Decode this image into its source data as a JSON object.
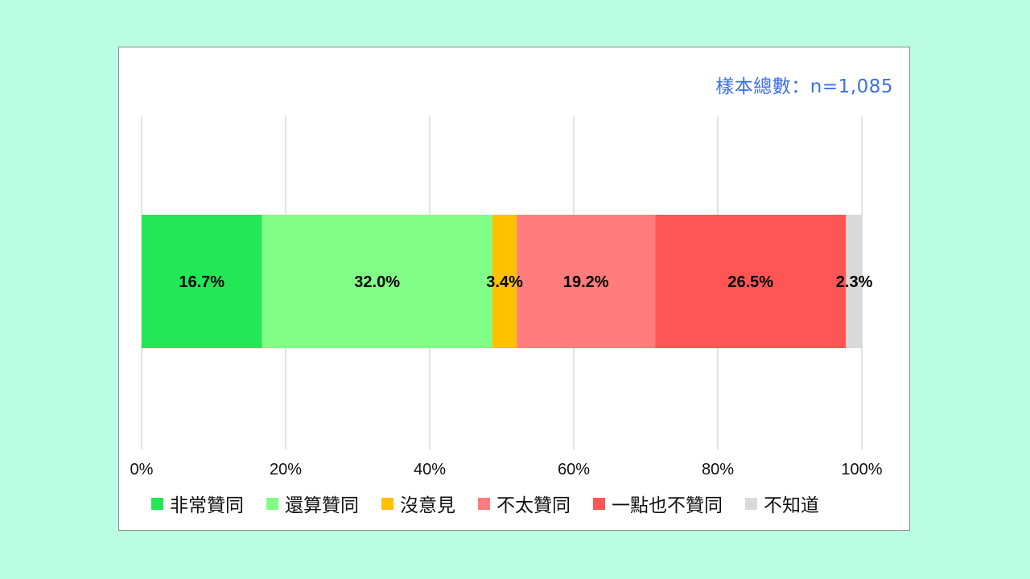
{
  "chart_data": {
    "type": "bar",
    "orientation": "horizontal-stacked",
    "sample_note": "樣本總數：n=1,085",
    "categories": [
      ""
    ],
    "series": [
      {
        "name": "非常贊同",
        "values": [
          16.7
        ],
        "label": "16.7%",
        "color": "#22e855"
      },
      {
        "name": "還算贊同",
        "values": [
          32.0
        ],
        "label": "32.0%",
        "color": "#80fe85"
      },
      {
        "name": "沒意見",
        "values": [
          3.4
        ],
        "label": "3.4%",
        "color": "#ffc000"
      },
      {
        "name": "不太贊同",
        "values": [
          19.2
        ],
        "label": "19.2%",
        "color": "#ff7c7c"
      },
      {
        "name": "一點也不贊同",
        "values": [
          26.5
        ],
        "label": "26.5%",
        "color": "#ff5555"
      },
      {
        "name": "不知道",
        "values": [
          2.3
        ],
        "label": "2.3%",
        "color": "#d9d9d9"
      }
    ],
    "xlim": [
      0,
      100
    ],
    "x_ticks": [
      "0%",
      "20%",
      "40%",
      "60%",
      "80%",
      "100%"
    ],
    "tick_values": [
      0,
      20,
      40,
      60,
      80,
      100
    ],
    "grid": true,
    "legend_position": "bottom"
  }
}
